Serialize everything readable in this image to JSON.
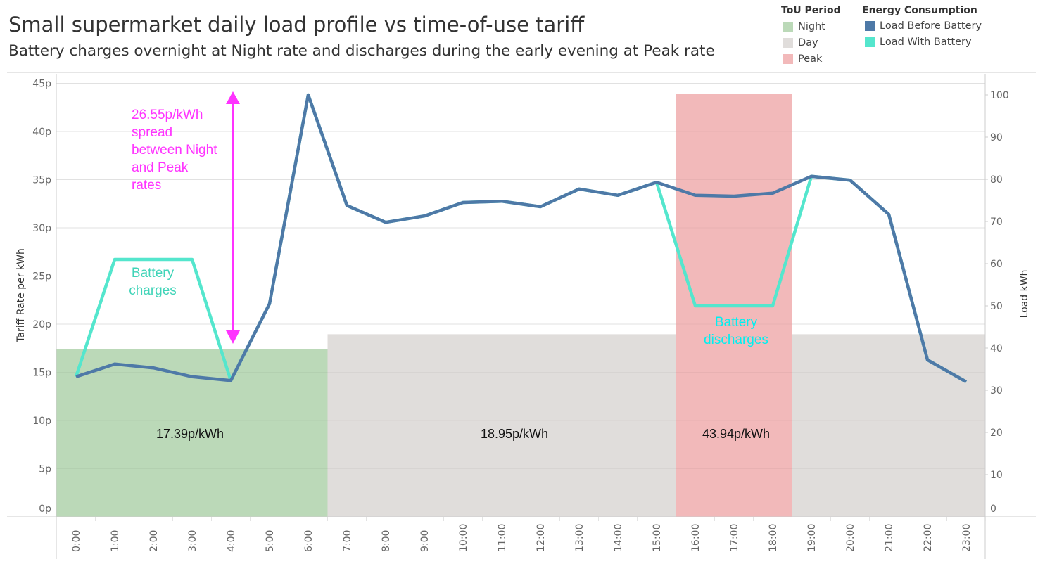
{
  "title": "Small supermarket daily load profile vs time-of-use tariff",
  "subtitle": "Battery charges overnight at Night rate and discharges during the early evening at Peak rate",
  "legend": {
    "tou_title": "ToU Period",
    "tou_items": [
      {
        "label": "Night",
        "color": "#bbd9b8"
      },
      {
        "label": "Day",
        "color": "#e0dddb"
      },
      {
        "label": "Peak",
        "color": "#f2b9ba"
      }
    ],
    "energy_title": "Energy Consumption",
    "energy_items": [
      {
        "label": "Load Before Battery",
        "color": "#4e79a7"
      },
      {
        "label": "Load With Battery",
        "color": "#54e6cd"
      }
    ]
  },
  "chart_data": {
    "type": "line",
    "x": [
      "0:00",
      "1:00",
      "2:00",
      "3:00",
      "4:00",
      "5:00",
      "6:00",
      "7:00",
      "8:00",
      "9:00",
      "10:00",
      "11:00",
      "12:00",
      "13:00",
      "14:00",
      "15:00",
      "16:00",
      "17:00",
      "18:00",
      "19:00",
      "20:00",
      "21:00",
      "22:00",
      "23:00"
    ],
    "y_left": {
      "label": "Tariff Rate per kWh",
      "ticks": [
        "0p",
        "5p",
        "10p",
        "15p",
        "20p",
        "25p",
        "30p",
        "35p",
        "40p",
        "45p"
      ],
      "range": [
        0,
        45
      ]
    },
    "y_right": {
      "label": "Load kWh",
      "ticks": [
        "0",
        "10",
        "20",
        "30",
        "40",
        "50",
        "60",
        "70",
        "80",
        "90",
        "100"
      ],
      "range": [
        0,
        100
      ]
    },
    "tou_bars": [
      {
        "period": "Night",
        "start": "0:00",
        "end": "6:30",
        "rate": 17.39,
        "label": "17.39p/kWh"
      },
      {
        "period": "Day",
        "start": "6:30",
        "end": "23:59",
        "rate": 18.95,
        "label": "18.95p/kWh"
      },
      {
        "period": "Peak",
        "start": "15:30",
        "end": "18:30",
        "rate": 43.94,
        "label": "43.94p/kWh"
      }
    ],
    "series": [
      {
        "name": "Load Before Battery",
        "axis": "right",
        "values": [
          33.2,
          36.2,
          35.3,
          33.2,
          32.3,
          50.5,
          100,
          73.8,
          69.8,
          71.3,
          74.5,
          74.8,
          73.5,
          77.7,
          76.2,
          79.3,
          76.2,
          76,
          76.7,
          80.7,
          79.8,
          71.7,
          37.2,
          32
        ]
      },
      {
        "name": "Load With Battery",
        "axis": "right",
        "values": [
          33.2,
          61,
          61,
          61,
          32.3,
          50.5,
          100,
          73.8,
          69.8,
          71.3,
          74.5,
          74.8,
          73.5,
          77.7,
          76.2,
          79.3,
          50,
          50,
          50,
          80.7,
          79.8,
          71.7,
          37.2,
          32
        ]
      }
    ],
    "annotations": {
      "spread": [
        "26.55p/kWh",
        "spread",
        "between Night",
        "and Peak",
        "rates"
      ],
      "charges": [
        "Battery",
        "charges"
      ],
      "discharges": [
        "Battery",
        "discharges"
      ],
      "spread_color": "#ff33ff",
      "charges_color": "#40d4b8",
      "discharges_color": "#00f0f0"
    },
    "grid": true
  }
}
